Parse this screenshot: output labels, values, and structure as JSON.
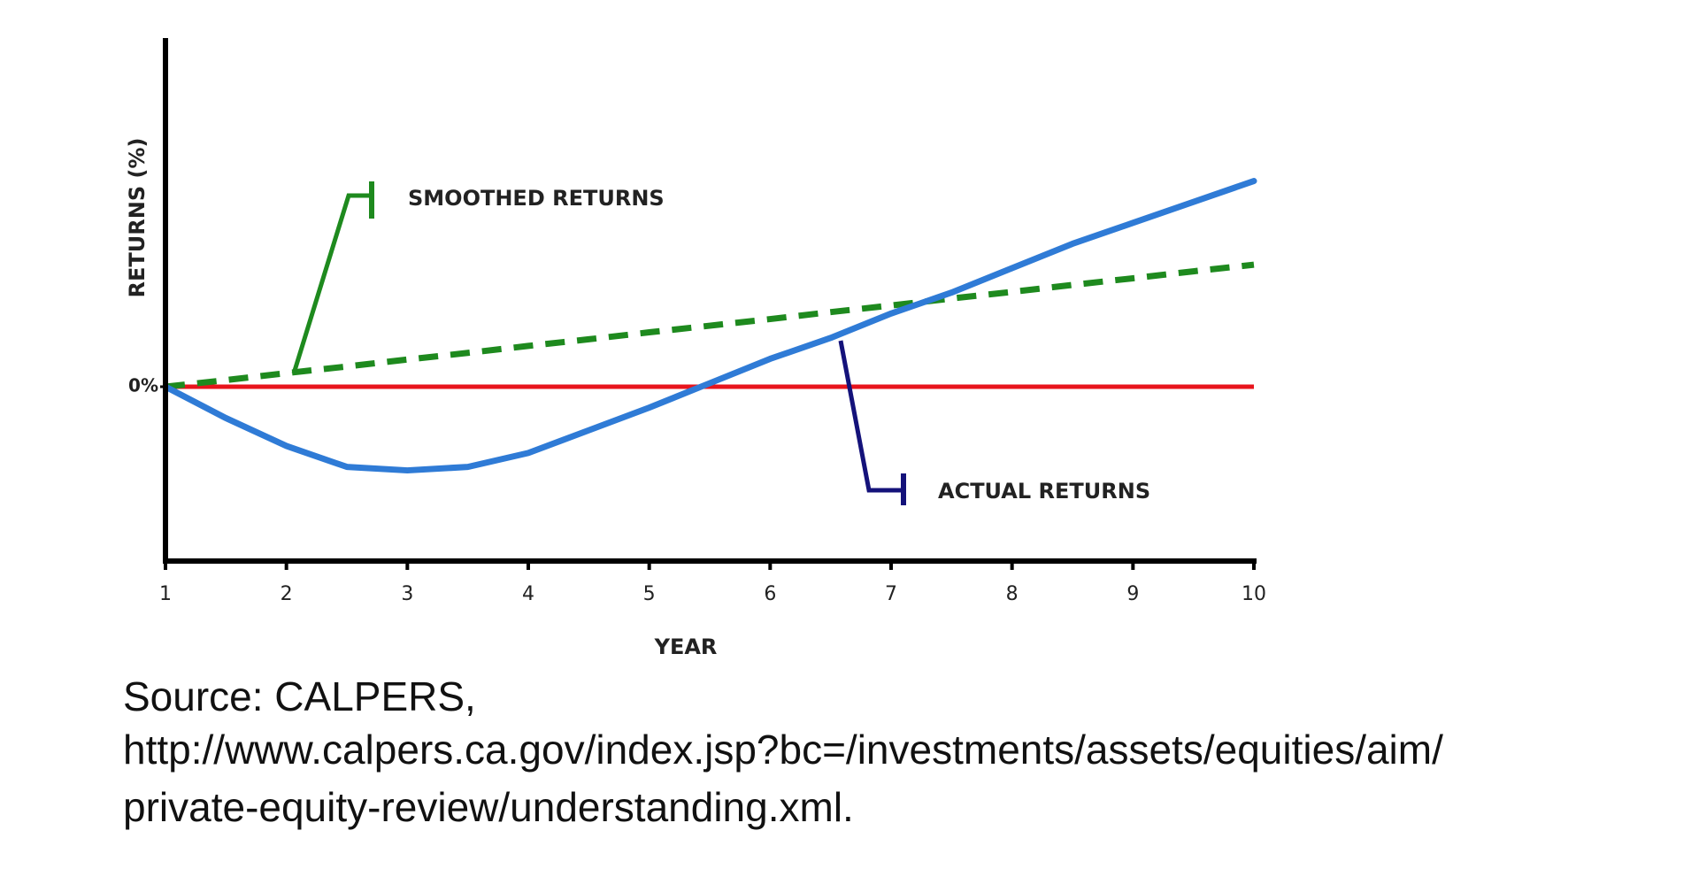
{
  "chart_data": {
    "type": "line",
    "x_label": "YEAR",
    "y_label": "RETURNS (%)",
    "x": [
      1,
      1.5,
      2,
      2.5,
      3,
      3.5,
      4,
      4.5,
      5,
      5.5,
      6,
      6.5,
      7,
      7.5,
      8,
      8.5,
      9,
      9.5,
      10
    ],
    "series": [
      {
        "name": "SMOOTHED RETURNS",
        "color": "#1e8a1e",
        "dashed": true,
        "values": [
          0,
          0.19,
          0.39,
          0.58,
          0.78,
          0.97,
          1.17,
          1.36,
          1.56,
          1.75,
          1.94,
          2.14,
          2.33,
          2.53,
          2.72,
          2.92,
          3.11,
          3.31,
          3.5
        ]
      },
      {
        "name": "ACTUAL RETURNS",
        "color": "#2f7bd6",
        "dashed": false,
        "pointer_color": "#14127a",
        "values": [
          0,
          -0.9,
          -1.7,
          -2.3,
          -2.4,
          -2.3,
          -1.9,
          -1.25,
          -0.6,
          0.1,
          0.8,
          1.4,
          2.1,
          2.7,
          3.4,
          4.1,
          4.7,
          5.3,
          5.9
        ]
      }
    ],
    "reference_line": {
      "value": 0,
      "color": "#e8141c"
    },
    "xlim": [
      1,
      10
    ],
    "xticks": [
      1,
      2,
      3,
      4,
      5,
      6,
      7,
      8,
      9,
      10
    ],
    "ylim": [
      -5,
      10
    ],
    "yticks": [
      {
        "value": 0,
        "label": "0%"
      }
    ],
    "grid": false,
    "source": [
      "Source: CALPERS,",
      "http://www.calpers.ca.gov/index.jsp?bc=/investments/assets/equities/aim/",
      "private-equity-review/understanding.xml."
    ]
  }
}
